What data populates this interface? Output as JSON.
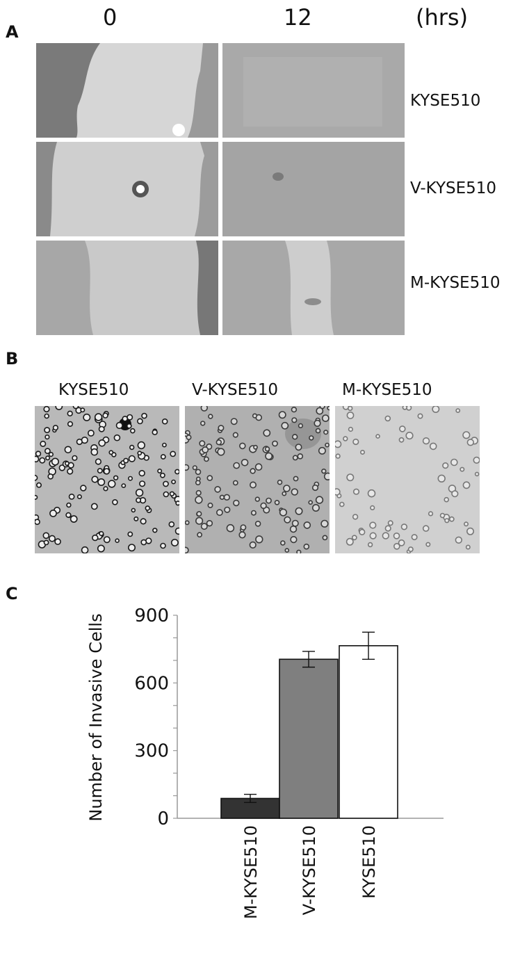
{
  "panel_a": {
    "letter": "A",
    "columns": [
      "0",
      "12"
    ],
    "unit": "(hrs)",
    "rows": [
      "KYSE510",
      "V-KYSE510",
      "M-KYSE510"
    ]
  },
  "panel_b": {
    "letter": "B",
    "labels": [
      "KYSE510",
      "V-KYSE510",
      "M-KYSE510"
    ]
  },
  "panel_c": {
    "letter": "C"
  },
  "chart_data": {
    "type": "bar",
    "categories": [
      "M-KYSE510",
      "V-KYSE510",
      "KYSE510"
    ],
    "values": [
      88,
      705,
      765
    ],
    "error": [
      18,
      35,
      60
    ],
    "bar_colors": [
      "#333333",
      "#7f7f7f",
      "#ffffff"
    ],
    "ylabel": "Number of Invasive Cells",
    "ylim": [
      0,
      900
    ],
    "yticks": [
      0,
      300,
      600,
      900
    ],
    "grid": false
  }
}
